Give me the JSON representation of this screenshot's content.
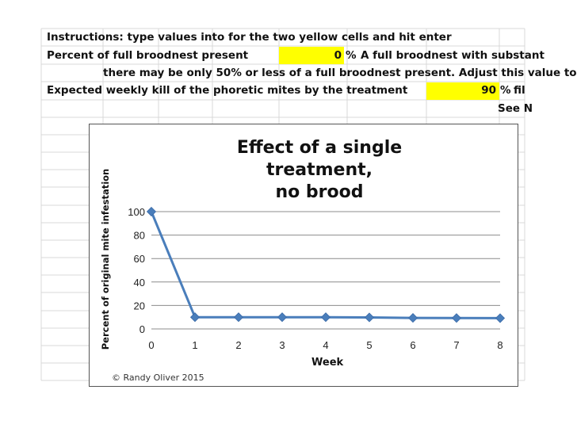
{
  "spreadsheet": {
    "instructions": "Instructions: type values into for the two yellow cells and hit enter",
    "row_broodnest_label": "Percent of full broodnest present",
    "broodnest_value": "0",
    "broodnest_unit": "%",
    "broodnest_note": "A full broodnest with substant",
    "row_adjust_note": "there may be only 50% or less of a full broodnest present.  Adjust this value to",
    "row_kill_label": "Expected weekly kill of the phoretic mites by the treatment",
    "kill_value": "90",
    "kill_unit": "%",
    "kill_note": "fil",
    "see_note": "See N"
  },
  "colors": {
    "input_cell": "#ffff00",
    "series": "#4a7ebb",
    "gridline": "#8c8c8c"
  },
  "chart_data": {
    "type": "line",
    "title": "Effect of a single treatment, no brood",
    "title_lines": [
      "Effect of a single treatment,",
      "no brood"
    ],
    "xlabel": "Week",
    "ylabel": "Percent of original mite infestation",
    "x": [
      0,
      1,
      2,
      3,
      4,
      5,
      6,
      7,
      8
    ],
    "series": [
      {
        "values": [
          100,
          10,
          10,
          10,
          10,
          9.8,
          9.4,
          9.3,
          9.2
        ]
      }
    ],
    "xlim": [
      0,
      8
    ],
    "ylim": [
      0,
      100
    ],
    "yticks": [
      0,
      20,
      40,
      60,
      80,
      100
    ],
    "xticks": [
      0,
      1,
      2,
      3,
      4,
      5,
      6,
      7,
      8
    ],
    "grid": true,
    "legend": false,
    "marker": "diamond",
    "credit": "© Randy Oliver 2015"
  }
}
